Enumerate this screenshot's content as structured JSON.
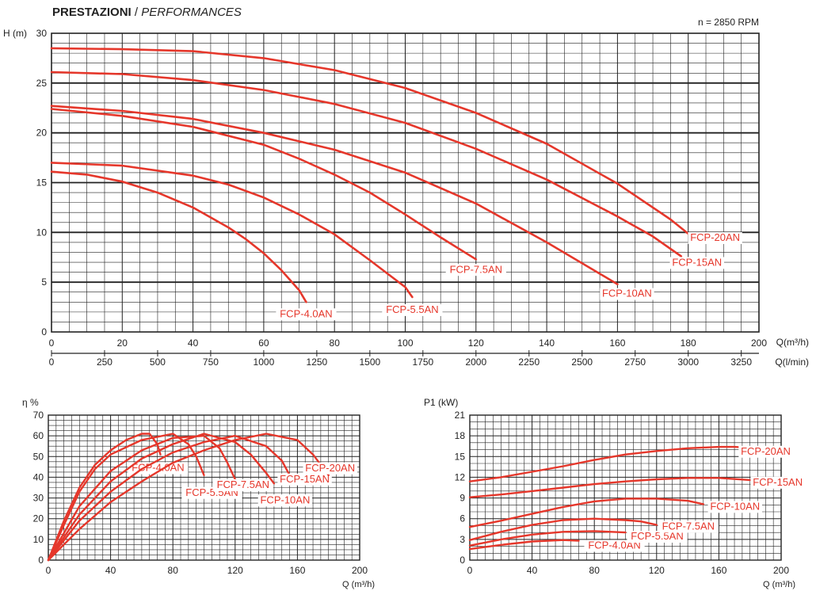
{
  "header": {
    "title_bold": "PRESTAZIONI",
    "title_sep": " / ",
    "title_italic": "PERFORMANCES",
    "rpm": "n = 2850 RPM"
  },
  "colors": {
    "curve": "#e5372b",
    "grid": "#222222",
    "text": "#222222"
  },
  "chart_data": [
    {
      "type": "line",
      "id": "head",
      "ylabel": "H (m)",
      "xlabel": "Q(m³/h)",
      "xlabel2": "Q(l/min)",
      "xlim": [
        0,
        200
      ],
      "ylim": [
        0,
        30
      ],
      "xticks": [
        "0",
        "20",
        "40",
        "60",
        "80",
        "100",
        "120",
        "140",
        "160",
        "180",
        "200"
      ],
      "yticks": [
        "0",
        "5",
        "10",
        "15",
        "20",
        "25",
        "30"
      ],
      "xticks2": [
        "0",
        "250",
        "500",
        "750",
        "1000",
        "1250",
        "1500",
        "1750",
        "2000",
        "2250",
        "2500",
        "2750",
        "3000",
        "3250"
      ],
      "grid": true,
      "series": [
        {
          "name": "FCP-4.0AN",
          "x": [
            0,
            10,
            20,
            30,
            40,
            50,
            55,
            60,
            65,
            70,
            72
          ],
          "y": [
            16.1,
            15.8,
            15.1,
            14.0,
            12.5,
            10.5,
            9.3,
            7.9,
            6.2,
            4.2,
            3.0
          ]
        },
        {
          "name": "FCP-5.5AN",
          "x": [
            0,
            20,
            40,
            50,
            60,
            70,
            80,
            90,
            100,
            102
          ],
          "y": [
            17.0,
            16.7,
            15.7,
            14.8,
            13.5,
            11.8,
            9.8,
            7.2,
            4.5,
            3.5
          ]
        },
        {
          "name": "FCP-7.5AN",
          "x": [
            0,
            20,
            40,
            60,
            70,
            80,
            90,
            100,
            110,
            120
          ],
          "y": [
            22.4,
            21.7,
            20.6,
            18.8,
            17.4,
            15.8,
            14.0,
            11.8,
            9.5,
            7.3
          ]
        },
        {
          "name": "FCP-10AN",
          "x": [
            0,
            20,
            40,
            60,
            80,
            100,
            120,
            140,
            160
          ],
          "y": [
            22.7,
            22.2,
            21.4,
            20.0,
            18.3,
            16.0,
            12.9,
            9.0,
            4.8
          ]
        },
        {
          "name": "FCP-15AN",
          "x": [
            0,
            20,
            40,
            60,
            80,
            100,
            120,
            140,
            160,
            170,
            178
          ],
          "y": [
            26.1,
            25.9,
            25.3,
            24.3,
            22.9,
            21.0,
            18.4,
            15.3,
            11.6,
            9.6,
            7.6
          ]
        },
        {
          "name": "FCP-20AN",
          "x": [
            0,
            20,
            40,
            60,
            80,
            100,
            120,
            140,
            160,
            175,
            182
          ],
          "y": [
            28.5,
            28.4,
            28.2,
            27.5,
            26.3,
            24.5,
            22.0,
            18.9,
            14.9,
            11.3,
            9.3
          ]
        }
      ]
    },
    {
      "type": "line",
      "id": "efficiency",
      "ylabel": "η %",
      "xlabel": "Q (m³/h)",
      "xlim": [
        0,
        200
      ],
      "ylim": [
        0,
        70
      ],
      "xticks": [
        "0",
        "40",
        "80",
        "120",
        "160",
        "200"
      ],
      "yticks": [
        "0",
        "10",
        "20",
        "30",
        "40",
        "50",
        "60",
        "70"
      ],
      "grid": true,
      "series": [
        {
          "name": "FCP-4.0AN",
          "x": [
            0,
            10,
            20,
            30,
            40,
            50,
            60,
            65,
            70,
            72
          ],
          "y": [
            0,
            19,
            35,
            46,
            53,
            58,
            61,
            61,
            56,
            51
          ]
        },
        {
          "name": "FCP-5.5AN",
          "x": [
            0,
            10,
            20,
            30,
            40,
            60,
            80,
            90,
            95,
            100
          ],
          "y": [
            0,
            17,
            33,
            44,
            51,
            58,
            61,
            56,
            50,
            41
          ]
        },
        {
          "name": "FCP-7.5AN",
          "x": [
            0,
            20,
            40,
            60,
            80,
            100,
            110,
            115,
            120
          ],
          "y": [
            0,
            26,
            43,
            53,
            59,
            60,
            54,
            47,
            39
          ]
        },
        {
          "name": "FCP-10AN",
          "x": [
            0,
            20,
            40,
            60,
            80,
            100,
            120,
            130,
            140,
            145
          ],
          "y": [
            0,
            22,
            38,
            49,
            56,
            61,
            57,
            51,
            42,
            37
          ]
        },
        {
          "name": "FCP-15AN",
          "x": [
            0,
            20,
            40,
            60,
            80,
            100,
            120,
            140,
            150,
            155
          ],
          "y": [
            0,
            19,
            33,
            44,
            52,
            57,
            60,
            55,
            48,
            41
          ]
        },
        {
          "name": "FCP-20AN",
          "x": [
            0,
            20,
            40,
            60,
            80,
            100,
            120,
            140,
            160,
            170,
            180
          ],
          "y": [
            0,
            15,
            28,
            38,
            47,
            53,
            58,
            61,
            58,
            51,
            41
          ]
        }
      ]
    },
    {
      "type": "line",
      "id": "power",
      "ylabel": "P1 (kW)",
      "xlabel": "Q (m³/h)",
      "xlim": [
        0,
        200
      ],
      "ylim": [
        0,
        21
      ],
      "xticks": [
        "0",
        "40",
        "80",
        "120",
        "160",
        "200"
      ],
      "yticks": [
        "0",
        "3",
        "6",
        "9",
        "12",
        "15",
        "18",
        "21"
      ],
      "grid": true,
      "series": [
        {
          "name": "FCP-4.0AN",
          "x": [
            0,
            20,
            40,
            60,
            70
          ],
          "y": [
            1.6,
            2.2,
            2.7,
            2.9,
            2.8
          ]
        },
        {
          "name": "FCP-5.5AN",
          "x": [
            0,
            20,
            40,
            60,
            80,
            100
          ],
          "y": [
            2.1,
            3.0,
            3.7,
            4.1,
            4.2,
            4.0
          ]
        },
        {
          "name": "FCP-7.5AN",
          "x": [
            0,
            20,
            40,
            60,
            80,
            100,
            110,
            120
          ],
          "y": [
            2.9,
            4.1,
            5.1,
            5.8,
            6.0,
            5.8,
            5.6,
            5.1
          ]
        },
        {
          "name": "FCP-10AN",
          "x": [
            0,
            20,
            40,
            60,
            80,
            100,
            120,
            140,
            150
          ],
          "y": [
            4.8,
            5.7,
            6.7,
            7.7,
            8.5,
            8.9,
            8.9,
            8.6,
            8.1
          ]
        },
        {
          "name": "FCP-15AN",
          "x": [
            0,
            20,
            40,
            60,
            80,
            100,
            120,
            140,
            160,
            180
          ],
          "y": [
            9.1,
            9.5,
            10.0,
            10.5,
            11.0,
            11.4,
            11.7,
            11.9,
            11.9,
            11.6
          ]
        },
        {
          "name": "FCP-20AN",
          "x": [
            0,
            20,
            40,
            60,
            80,
            100,
            120,
            140,
            160,
            170,
            185
          ],
          "y": [
            11.4,
            12.0,
            12.8,
            13.6,
            14.5,
            15.3,
            15.8,
            16.2,
            16.4,
            16.4,
            16.2
          ]
        }
      ]
    }
  ]
}
